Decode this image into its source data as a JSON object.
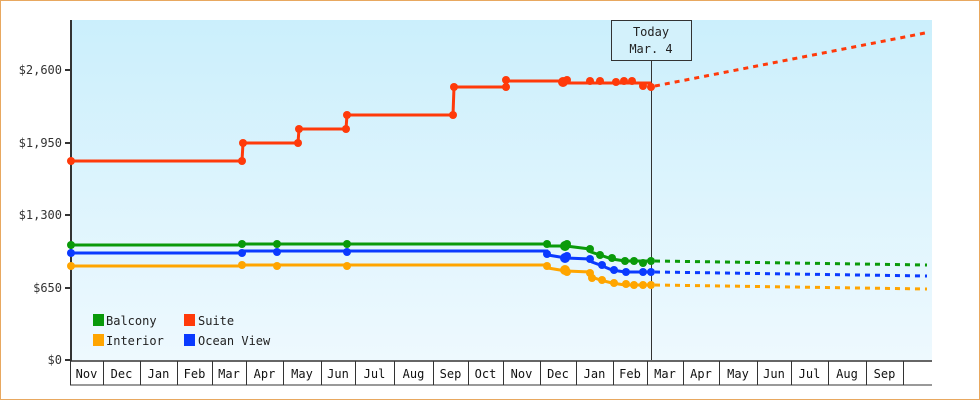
{
  "chart_data": {
    "type": "line",
    "title": "",
    "xlabel": "",
    "ylabel": "",
    "ylim": [
      0,
      2900
    ],
    "y_ticks": [
      {
        "label": "$0",
        "value": 0
      },
      {
        "label": "$650",
        "value": 650
      },
      {
        "label": "$1,300",
        "value": 1300
      },
      {
        "label": "$1,950",
        "value": 1950
      },
      {
        "label": "$2,600",
        "value": 2600
      }
    ],
    "x_months": [
      "Nov",
      "Dec",
      "Jan",
      "Feb",
      "Mar",
      "Apr",
      "May",
      "Jun",
      "Jul",
      "Aug",
      "Sep",
      "Oct",
      "Nov",
      "Dec",
      "Jan",
      "Feb",
      "Mar",
      "Apr",
      "May",
      "Jun",
      "Jul",
      "Aug",
      "Sep"
    ],
    "today_marker": {
      "line1": "Today",
      "line2": "Mar. 4"
    },
    "grid": false,
    "legend_position": "lower-left",
    "series": [
      {
        "name": "Balcony",
        "color": "#0a9a0a",
        "history": [
          [
            "Nov",
            1035
          ],
          [
            "Mar",
            1035
          ],
          [
            "Apr",
            1040
          ],
          [
            "Jun",
            1040
          ],
          [
            "Nov",
            1040
          ],
          [
            "Dec",
            1020
          ],
          [
            "Jan",
            1000
          ],
          [
            "Jan",
            940
          ],
          [
            "Feb",
            860
          ],
          [
            "Mar 4",
            860
          ]
        ],
        "forecast": [
          [
            "Mar 4",
            880
          ],
          [
            "Sep",
            850
          ]
        ]
      },
      {
        "name": "Suite",
        "color": "#ff3a0a",
        "history": [
          [
            "Nov",
            1800
          ],
          [
            "Mar",
            1800
          ],
          [
            "Mar",
            1960
          ],
          [
            "May",
            1960
          ],
          [
            "May",
            2080
          ],
          [
            "Jun",
            2080
          ],
          [
            "Jun",
            2200
          ],
          [
            "Sep",
            2200
          ],
          [
            "Sep",
            2450
          ],
          [
            "Nov",
            2450
          ],
          [
            "Nov",
            2510
          ],
          [
            "Dec",
            2500
          ],
          [
            "Jan",
            2510
          ],
          [
            "Feb",
            2500
          ],
          [
            "Mar 4",
            2450
          ]
        ],
        "forecast": [
          [
            "Mar 4",
            2450
          ],
          [
            "Sep",
            2930
          ]
        ]
      },
      {
        "name": "Interior",
        "color": "#ffa500",
        "history": [
          [
            "Nov",
            840
          ],
          [
            "Mar",
            840
          ],
          [
            "Apr",
            845
          ],
          [
            "Jun",
            845
          ],
          [
            "Nov",
            845
          ],
          [
            "Dec",
            800
          ],
          [
            "Jan",
            790
          ],
          [
            "Jan",
            710
          ],
          [
            "Feb",
            680
          ],
          [
            "Mar 4",
            670
          ]
        ],
        "forecast": [
          [
            "Mar 4",
            680
          ],
          [
            "Sep",
            630
          ]
        ]
      },
      {
        "name": "Ocean View",
        "color": "#0a3aff",
        "history": [
          [
            "Nov",
            955
          ],
          [
            "Mar",
            955
          ],
          [
            "Apr",
            965
          ],
          [
            "Jun",
            960
          ],
          [
            "Nov",
            960
          ],
          [
            "Dec",
            910
          ],
          [
            "Jan",
            890
          ],
          [
            "Jan",
            860
          ],
          [
            "Feb",
            790
          ],
          [
            "Mar 4",
            780
          ]
        ],
        "forecast": [
          [
            "Mar 4",
            790
          ],
          [
            "Sep",
            750
          ]
        ]
      }
    ]
  },
  "legend": [
    {
      "label": "Balcony",
      "color": "#0a9a0a"
    },
    {
      "label": "Suite",
      "color": "#ff3a0a"
    },
    {
      "label": "Interior",
      "color": "#ffa500"
    },
    {
      "label": "Ocean View",
      "color": "#0a3aff"
    }
  ],
  "axis": {
    "y_labels": [
      "$2,600",
      "$1,950",
      "$1,300",
      "$650",
      "$0"
    ],
    "months": [
      "Nov",
      "Dec",
      "Jan",
      "Feb",
      "Mar",
      "Apr",
      "May",
      "Jun",
      "Jul",
      "Aug",
      "Sep",
      "Oct",
      "Nov",
      "Dec",
      "Jan",
      "Feb",
      "Mar",
      "Apr",
      "May",
      "Jun",
      "Jul",
      "Aug",
      "Sep"
    ]
  },
  "today": {
    "line1": "Today",
    "line2": "Mar. 4"
  }
}
